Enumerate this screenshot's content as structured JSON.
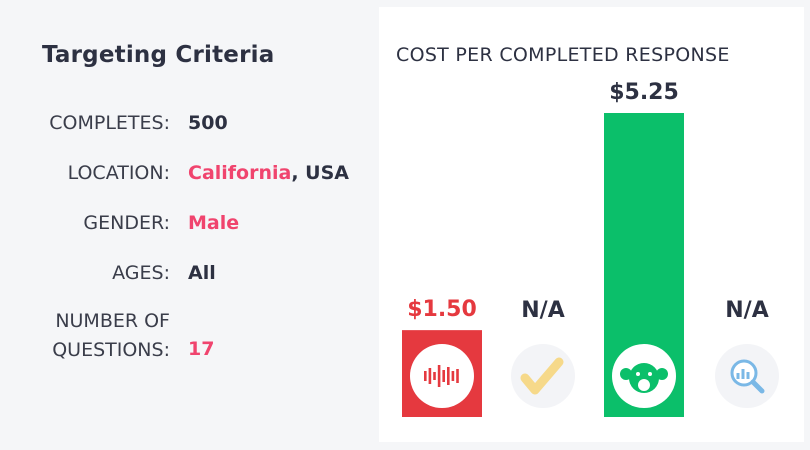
{
  "criteria": {
    "title": "Targeting Criteria",
    "rows": [
      {
        "label": "COMPLETES:",
        "value": "500"
      },
      {
        "label": "LOCATION:",
        "value_highlight": "California",
        "value_rest": ", USA"
      },
      {
        "label": "GENDER:",
        "value_highlight": "Male"
      },
      {
        "label": "AGES:",
        "value": "All"
      },
      {
        "label_line1": "NUMBER OF",
        "label_line2": "QUESTIONS:",
        "value_highlight": "17"
      }
    ]
  },
  "chart_data": {
    "type": "bar",
    "title": "COST PER COMPLETED RESPONSE",
    "categories": [
      "red-waveform-logo",
      "yellow-check-logo",
      "green-monkey-logo",
      "blue-magnifier-logo"
    ],
    "values": [
      1.5,
      null,
      5.25,
      null
    ],
    "labels": [
      "$1.50",
      "N/A",
      "$5.25",
      "N/A"
    ],
    "colors": [
      "#e5393f",
      "#f6d98a",
      "#0bbf6a",
      "#7ab8e6"
    ],
    "label_colors": [
      "#e5393f",
      "#2d3142",
      "#2d3142",
      "#2d3142"
    ],
    "ylim": [
      0,
      5.25
    ],
    "grid": false
  }
}
